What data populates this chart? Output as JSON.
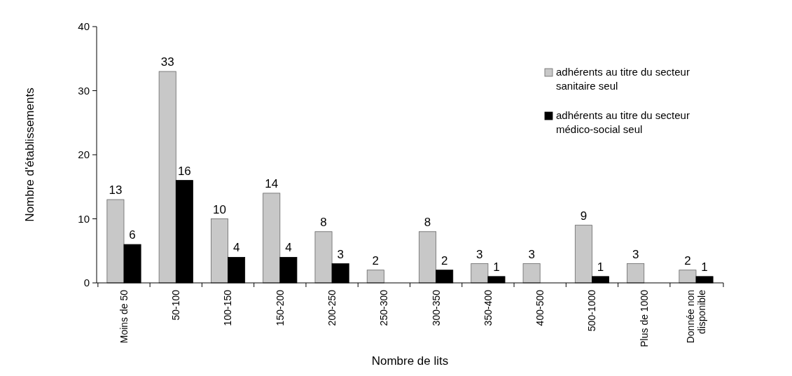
{
  "chart_data": {
    "type": "bar",
    "xlabel": "Nombre de lits",
    "ylabel": "Nombre d'établissements",
    "categories": [
      "Moins de 50",
      "50-100",
      "100-150",
      "150-200",
      "200-250",
      "250-300",
      "300-350",
      "350-400",
      "400-500",
      "500-1000",
      "Plus de 1000",
      "Donnée non disponible"
    ],
    "series": [
      {
        "name": "adhérents au titre du secteur sanitaire seul",
        "color": "#c8c8c8",
        "values": [
          13,
          33,
          10,
          14,
          8,
          2,
          8,
          3,
          3,
          9,
          3,
          2
        ]
      },
      {
        "name": "adhérents au titre du secteur médico-social seul",
        "color": "#000000",
        "values": [
          6,
          16,
          4,
          4,
          3,
          null,
          2,
          1,
          null,
          1,
          null,
          1
        ]
      }
    ],
    "ylim": [
      0,
      40
    ],
    "yticks": [
      0,
      10,
      20,
      30,
      40
    ],
    "data_labels": true,
    "legend": "top right"
  }
}
